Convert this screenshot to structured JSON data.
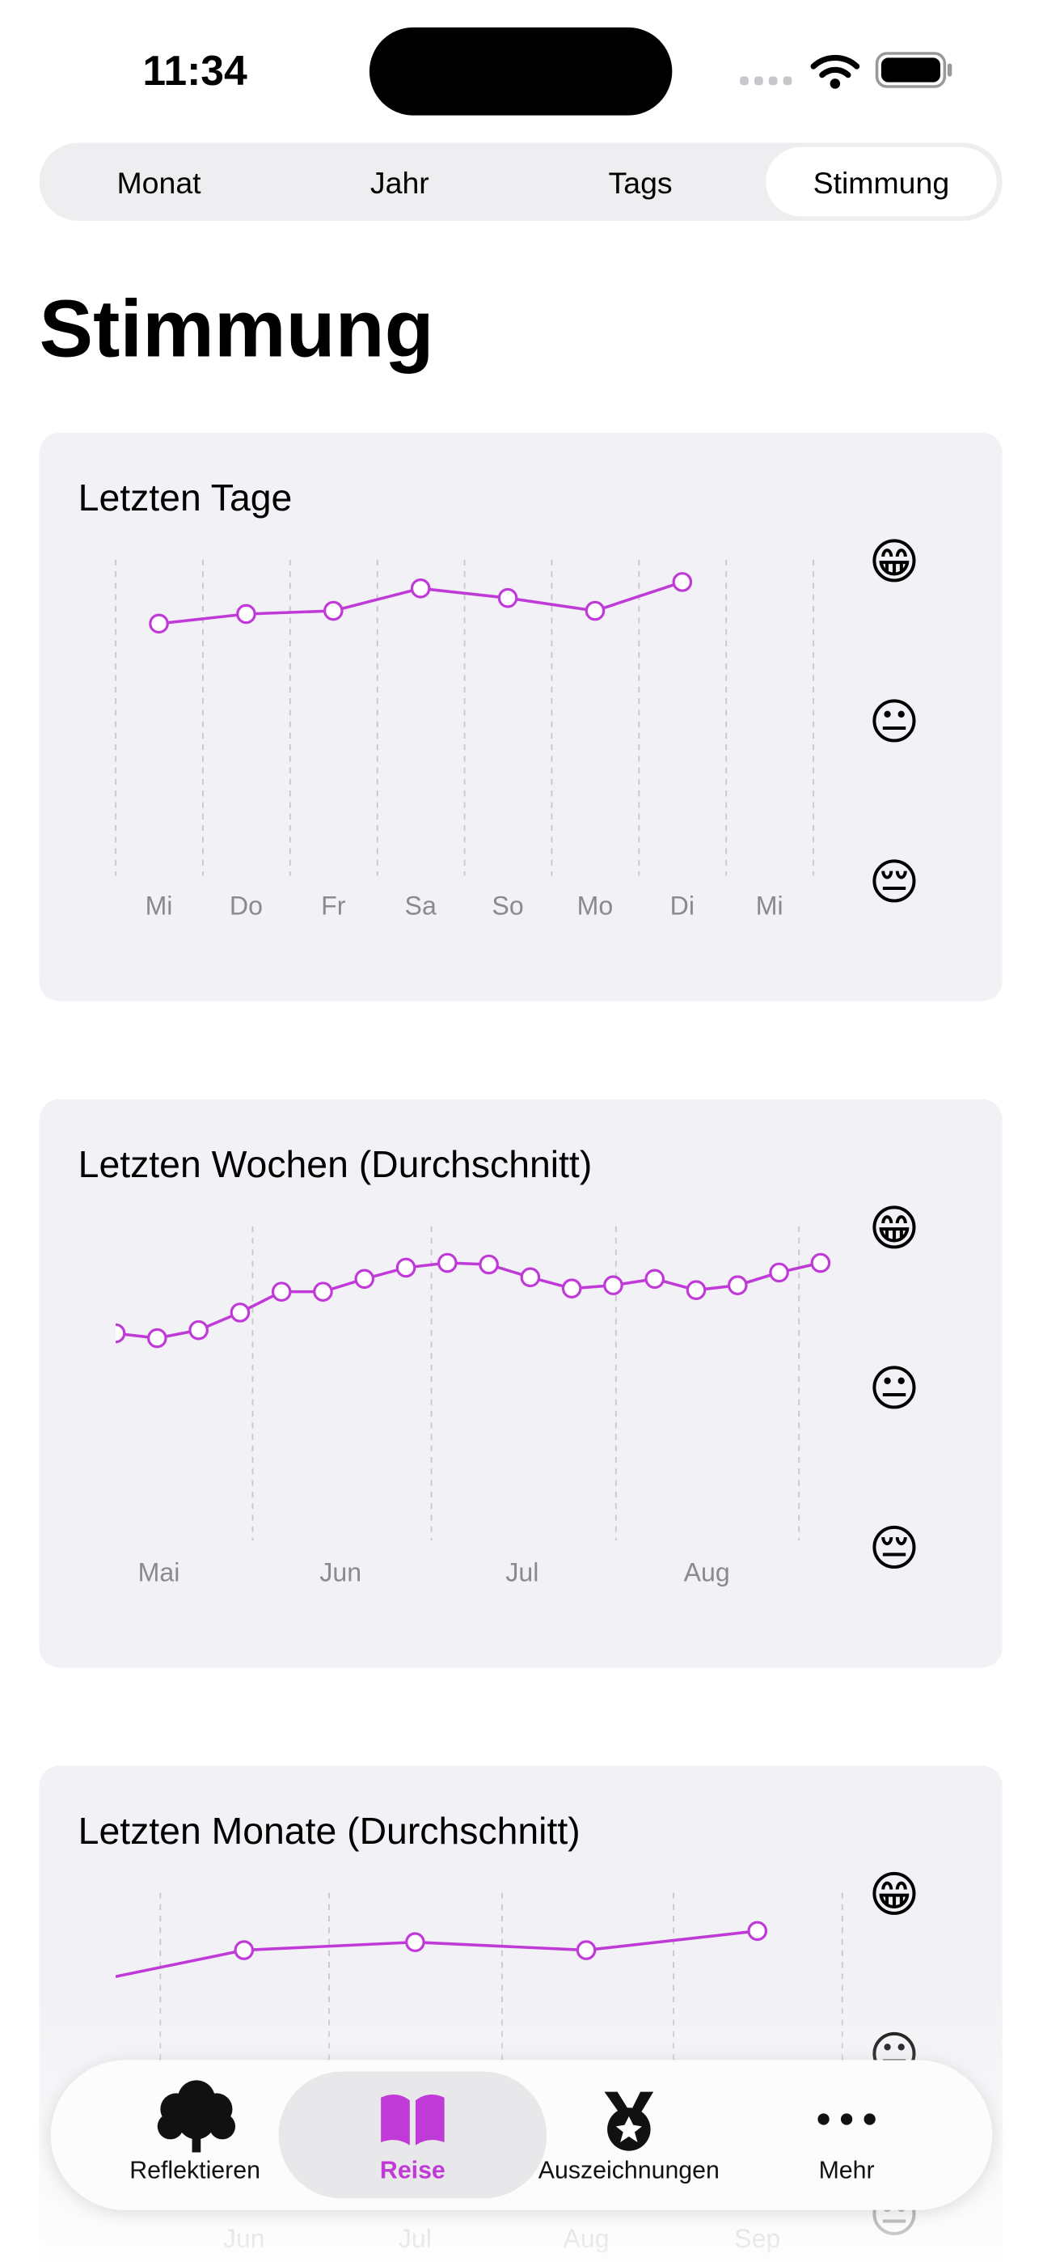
{
  "status_bar": {
    "time": "11:34"
  },
  "segments": {
    "items": [
      "Monat",
      "Jahr",
      "Tags",
      "Stimmung"
    ],
    "selected": 3
  },
  "title": "Stimmung",
  "chart_data": [
    {
      "type": "line",
      "title": "Letzten Tage",
      "categories": [
        "Mi",
        "Do",
        "Fr",
        "Sa",
        "So",
        "Mo",
        "Di",
        "Mi"
      ],
      "series": [
        {
          "color": "#c03ad8",
          "values": [
            2.61,
            2.67,
            2.69,
            2.83,
            2.77,
            2.69,
            2.87,
            null
          ]
        }
      ],
      "ylim": [
        1,
        3
      ],
      "yticks": [
        {
          "value": 1,
          "label": "😔"
        },
        {
          "value": 2,
          "label": "😐"
        },
        {
          "value": 3,
          "label": "😁"
        }
      ],
      "grid": true
    },
    {
      "type": "line",
      "title": "Letzten Wochen (Durchschnitt)",
      "month_labels": [
        "Mai",
        "Jun",
        "Jul",
        "Aug"
      ],
      "series": [
        {
          "color": "#c03ad8",
          "values": [
            2.34,
            2.31,
            2.36,
            2.47,
            2.6,
            2.6,
            2.68,
            2.75,
            2.78,
            2.77,
            2.69,
            2.62,
            2.64,
            2.68,
            2.61,
            2.64,
            2.72,
            2.78
          ]
        }
      ],
      "ylim": [
        1,
        3
      ],
      "yticks": [
        {
          "value": 1,
          "label": "😔"
        },
        {
          "value": 2,
          "label": "😐"
        },
        {
          "value": 3,
          "label": "😁"
        }
      ],
      "grid": true
    },
    {
      "type": "line",
      "title": "Letzten Monate (Durchschnitt)",
      "categories": [
        null,
        "Jun",
        "Jul",
        "Aug",
        "Sep"
      ],
      "series": [
        {
          "color": "#c03ad8",
          "values": [
            2.43,
            2.65,
            2.7,
            2.65,
            2.77
          ]
        }
      ],
      "ylim": [
        1,
        3
      ],
      "yticks": [
        {
          "value": 1,
          "label": "😔"
        },
        {
          "value": 2,
          "label": "😐"
        },
        {
          "value": 3,
          "label": "😁"
        }
      ],
      "grid": true
    }
  ],
  "tab_bar": {
    "items": [
      "Reflektieren",
      "Reise",
      "Auszeichnungen",
      "Mehr"
    ],
    "selected": 1
  }
}
